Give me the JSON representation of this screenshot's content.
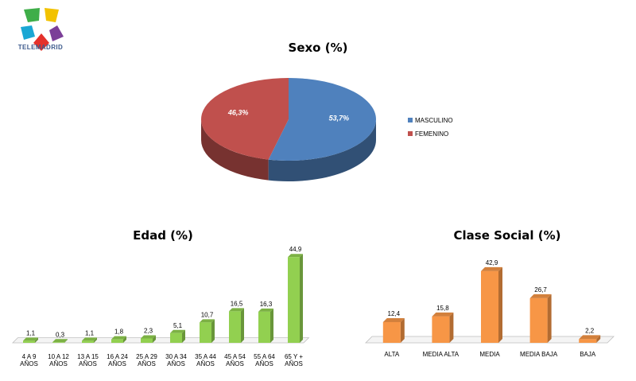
{
  "brand": {
    "logo_text": "TELEMADRID"
  },
  "chart_data": [
    {
      "type": "pie",
      "title": "Sexo (%)",
      "categories": [
        "MASCULINO",
        "FEMENINO"
      ],
      "values": [
        53.7,
        46.3
      ],
      "value_labels": [
        "53,7%",
        "46,3%"
      ],
      "colors": [
        "#4f81bd",
        "#c0504d"
      ],
      "legend": "right"
    },
    {
      "type": "bar",
      "title": "Edad (%)",
      "categories": [
        [
          "4 A 9",
          "AÑOS"
        ],
        [
          "10 A 12",
          "AÑOS"
        ],
        [
          "13 A 15",
          "AÑOS"
        ],
        [
          "16 A 24",
          "AÑOS"
        ],
        [
          "25 A 29",
          "AÑOS"
        ],
        [
          "30 A 34",
          "AÑOS"
        ],
        [
          "35 A 44",
          "AÑOS"
        ],
        [
          "45 A 54",
          "AÑOS"
        ],
        [
          "55 A 64",
          "AÑOS"
        ],
        [
          "65 Y +",
          "AÑOS"
        ]
      ],
      "values": [
        1.1,
        0.3,
        1.1,
        1.8,
        2.3,
        5.1,
        10.7,
        16.5,
        16.3,
        44.9
      ],
      "value_labels": [
        "1,1",
        "0,3",
        "1,1",
        "1,8",
        "2,3",
        "5,1",
        "10,7",
        "16,5",
        "16,3",
        "44,9"
      ],
      "color": "#92d050",
      "grid": false
    },
    {
      "type": "bar",
      "title": "Clase Social (%)",
      "categories": [
        [
          "ALTA"
        ],
        [
          "MEDIA ALTA"
        ],
        [
          "MEDIA"
        ],
        [
          "MEDIA BAJA"
        ],
        [
          "BAJA"
        ]
      ],
      "values": [
        12.4,
        15.8,
        42.9,
        26.7,
        2.2
      ],
      "value_labels": [
        "12,4",
        "15,8",
        "42,9",
        "26,7",
        "2,2"
      ],
      "color": "#f79646",
      "grid": false
    }
  ]
}
